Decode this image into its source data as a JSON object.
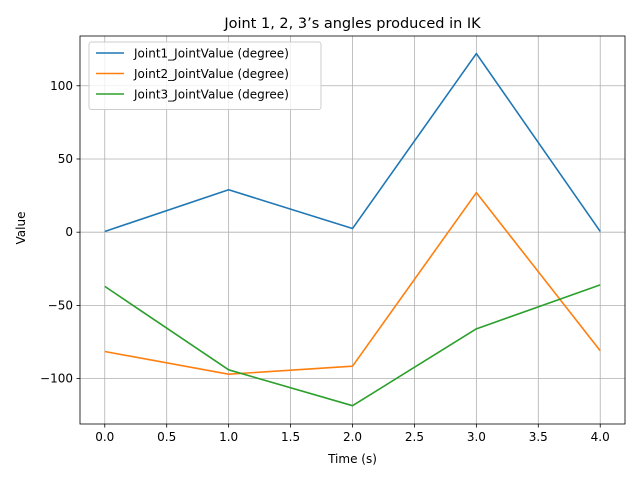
{
  "chart_data": {
    "type": "line",
    "title": "Joint 1, 2, 3’s angles produced in IK",
    "xlabel": "Time (s)",
    "ylabel": "Value",
    "xlim": [
      -0.2,
      4.2
    ],
    "ylim": [
      -131,
      134
    ],
    "x_ticks": [
      0.0,
      0.5,
      1.0,
      1.5,
      2.0,
      2.5,
      3.0,
      3.5,
      4.0
    ],
    "x_tick_labels": [
      "0.0",
      "0.5",
      "1.0",
      "1.5",
      "2.0",
      "2.5",
      "3.0",
      "3.5",
      "4.0"
    ],
    "y_ticks": [
      -100,
      -50,
      0,
      50,
      100
    ],
    "y_tick_labels": [
      "−100",
      "−50",
      "0",
      "50",
      "100"
    ],
    "grid": true,
    "legend_position": "top-left",
    "x": [
      0,
      1,
      2,
      3,
      4
    ],
    "series": [
      {
        "name": "Joint1_JointValue (degree)",
        "color": "#1f77b4",
        "values": [
          0.5,
          29,
          2.5,
          122,
          0.5
        ]
      },
      {
        "name": "Joint2_JointValue (degree)",
        "color": "#ff7f0e",
        "values": [
          -81.5,
          -97,
          -91.5,
          27,
          -81
        ]
      },
      {
        "name": "Joint3_JointValue (degree)",
        "color": "#2ca02c",
        "values": [
          -37,
          -94,
          -118.5,
          -66,
          -36
        ]
      }
    ]
  }
}
